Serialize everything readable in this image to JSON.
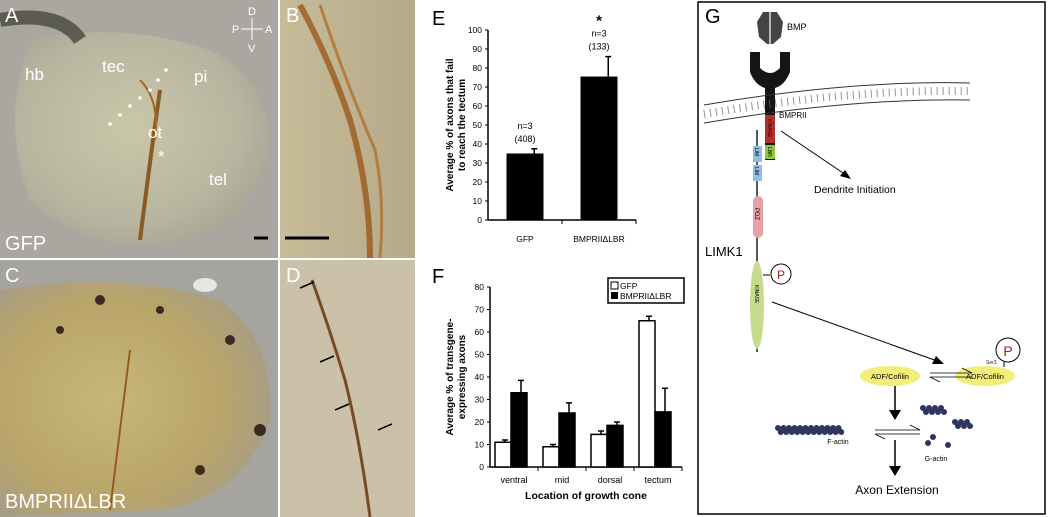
{
  "panels": {
    "A": {
      "letter": "A",
      "labels": {
        "hb": "hb",
        "tec": "tec",
        "pi": "pi",
        "ot": "ot",
        "tel": "tel",
        "star": "*"
      },
      "construct": "GFP",
      "compass": {
        "d": "D",
        "v": "V",
        "p": "P",
        "a": "A"
      }
    },
    "B": {
      "letter": "B"
    },
    "C": {
      "letter": "C",
      "construct": "BMPRIIΔLBR"
    },
    "D": {
      "letter": "D"
    },
    "E": {
      "letter": "E"
    },
    "F": {
      "letter": "F"
    },
    "G": {
      "letter": "G"
    }
  },
  "chart_data": [
    {
      "type": "bar",
      "panel": "E",
      "ylabel": "Average % of axons that fail to reach the tectum",
      "ylabel_lines": [
        "Average % of axons that fail",
        "to reach the tectum"
      ],
      "xlabel": "",
      "ylim": [
        0,
        100
      ],
      "yticks": [
        "0",
        "10",
        "20",
        "30",
        "40",
        "50",
        "60",
        "70",
        "80",
        "90",
        "100"
      ],
      "categories": [
        "GFP",
        "BMPRIIΔLBR"
      ],
      "values": [
        35,
        75.5
      ],
      "error_upper": [
        37.5,
        86
      ],
      "annotations": [
        [
          "n=3",
          "(408)"
        ],
        [
          "n=3",
          "(133)"
        ]
      ],
      "significance": [
        "",
        "*"
      ],
      "bar_color": "#000000"
    },
    {
      "type": "bar",
      "panel": "F",
      "ylabel": "Average % of transgene-expressing axons",
      "ylabel_lines": [
        "Average % of transgene-",
        "expressing axons"
      ],
      "xlabel": "Location of growth cone",
      "ylim": [
        0,
        80
      ],
      "yticks": [
        "0",
        "10",
        "20",
        "30",
        "40",
        "50",
        "60",
        "70",
        "80"
      ],
      "categories": [
        "ventral",
        "mid",
        "dorsal",
        "tectum"
      ],
      "series": [
        {
          "name": "GFP",
          "color": "#ffffff",
          "values": [
            11,
            9,
            14.5,
            65
          ],
          "error_upper": [
            12,
            10,
            16,
            67
          ]
        },
        {
          "name": "BMPRIIΔLBR",
          "color": "#000000",
          "values": [
            33,
            24,
            18.5,
            24.5
          ],
          "error_upper": [
            38.5,
            28.5,
            20,
            35
          ]
        }
      ],
      "legend": "top-right"
    }
  ],
  "diagram": {
    "bmp": "BMP",
    "receptor": "BMPRII",
    "receptor_kinase": "KINASE",
    "lbr": "LBR",
    "lim1": "LIM",
    "lim2": "LIM",
    "pdz": "PDZ",
    "limk1": "LIMK1",
    "limk_kinase": "KINASE",
    "phospho1": "P",
    "phospho2": "P",
    "ser3": "Ser3",
    "dendrite": "Dendrite Initiation",
    "cofilin1": "ADF/Cofilin",
    "cofilin2": "ADF/Cofilin",
    "factin": "F-actin",
    "gactin": "G-actin",
    "axon": "Axon Extension",
    "colors": {
      "kinase_red": "#b0302c",
      "lbr_green": "#8cc63f",
      "lim_blue": "#8fbde6",
      "pdz_pink": "#e8a0a8",
      "limk_kinase_green": "#c4dc8c",
      "cofilin_yellow": "#f2ee7a",
      "actin_navy": "#2e3560"
    }
  }
}
